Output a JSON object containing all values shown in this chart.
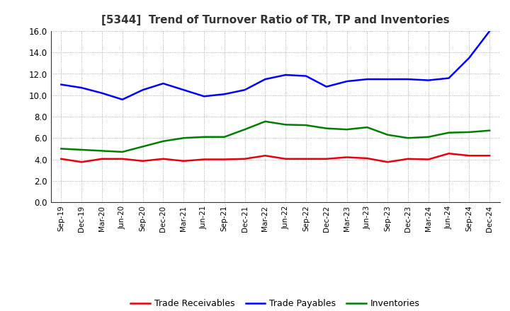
{
  "title": "[5344]  Trend of Turnover Ratio of TR, TP and Inventories",
  "xlabels": [
    "Sep-19",
    "Dec-19",
    "Mar-20",
    "Jun-20",
    "Sep-20",
    "Dec-20",
    "Mar-21",
    "Jun-21",
    "Sep-21",
    "Dec-21",
    "Mar-22",
    "Jun-22",
    "Sep-22",
    "Dec-22",
    "Mar-23",
    "Jun-23",
    "Sep-23",
    "Dec-23",
    "Mar-24",
    "Jun-24",
    "Sep-24",
    "Dec-24"
  ],
  "trade_receivables": [
    4.05,
    3.75,
    4.05,
    4.05,
    3.85,
    4.05,
    3.85,
    4.0,
    4.0,
    4.05,
    4.35,
    4.05,
    4.05,
    4.05,
    4.2,
    4.1,
    3.75,
    4.05,
    4.0,
    4.55,
    4.35,
    4.35
  ],
  "trade_payables": [
    11.0,
    10.7,
    10.2,
    9.6,
    10.5,
    11.1,
    10.5,
    9.9,
    10.1,
    10.5,
    11.5,
    11.9,
    11.8,
    10.8,
    11.3,
    11.5,
    11.5,
    11.5,
    11.4,
    11.6,
    13.5,
    16.0
  ],
  "inventories": [
    5.0,
    4.9,
    4.8,
    4.7,
    5.2,
    5.7,
    6.0,
    6.1,
    6.1,
    6.8,
    7.55,
    7.25,
    7.2,
    6.9,
    6.8,
    7.0,
    6.3,
    6.0,
    6.1,
    6.5,
    6.55,
    6.7
  ],
  "tr_color": "#e8000d",
  "tp_color": "#0000ff",
  "inv_color": "#008000",
  "ylim": [
    0.0,
    16.0
  ],
  "yticks": [
    0.0,
    2.0,
    4.0,
    6.0,
    8.0,
    10.0,
    12.0,
    14.0,
    16.0
  ],
  "legend_labels": [
    "Trade Receivables",
    "Trade Payables",
    "Inventories"
  ],
  "bg_color": "#ffffff",
  "line_width": 1.8
}
